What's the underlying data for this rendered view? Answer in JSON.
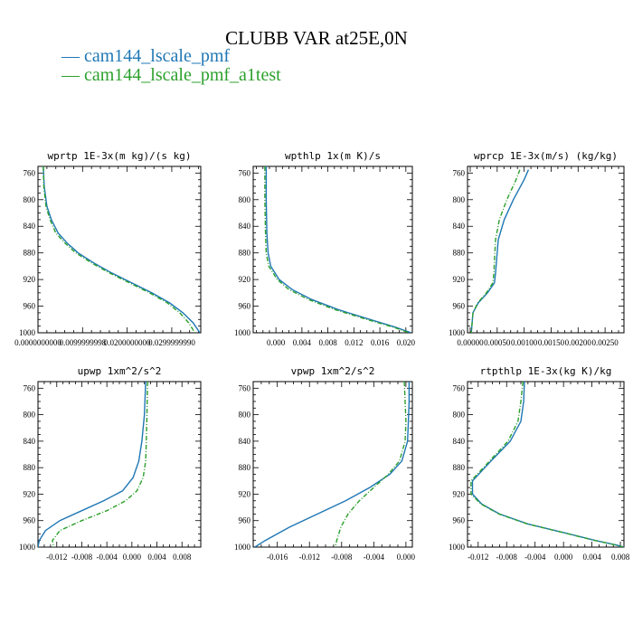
{
  "title": "CLUBB VAR at25E,0N",
  "legend": [
    {
      "label": "cam144_lscale_pmf",
      "color": "#1f77b4",
      "style": "solid"
    },
    {
      "label": "cam144_lscale_pmf_a1test",
      "color": "#2ca02c",
      "style": "dashed"
    }
  ],
  "chart_data": [
    {
      "type": "line",
      "title": "wprtp  1E-3x(m kg)/(s kg)",
      "ylim": [
        1000,
        750
      ],
      "yticks": [
        760,
        800,
        840,
        880,
        920,
        960,
        1000
      ],
      "ytick_labels": [
        "760",
        "800",
        "840",
        "880",
        "920",
        "960",
        "1000"
      ],
      "xlim": [
        0,
        0.0365
      ],
      "xticks": [
        0,
        0.01,
        0.02,
        0.03
      ],
      "xtick_labels": [
        "0.0000000000",
        "0.0099999998",
        "0.0200000000",
        "0.0299999990"
      ],
      "xminor": 5,
      "yminor": 4,
      "series": [
        {
          "name": "cam144_lscale_pmf",
          "x": [
            0.0012,
            0.0014,
            0.002,
            0.003,
            0.0045,
            0.0065,
            0.009,
            0.0125,
            0.0165,
            0.021,
            0.0255,
            0.0295,
            0.0325,
            0.0348,
            0.0363
          ],
          "y": [
            750,
            780,
            810,
            830,
            850,
            865,
            880,
            895,
            910,
            925,
            940,
            955,
            970,
            985,
            1000
          ]
        },
        {
          "name": "cam144_lscale_pmf_a1test",
          "x": [
            0.0012,
            0.0013,
            0.0018,
            0.0027,
            0.004,
            0.006,
            0.0085,
            0.012,
            0.016,
            0.0205,
            0.025,
            0.029,
            0.0318,
            0.0338,
            0.0352
          ],
          "y": [
            750,
            780,
            810,
            830,
            850,
            865,
            880,
            895,
            910,
            925,
            940,
            955,
            970,
            985,
            1000
          ]
        }
      ]
    },
    {
      "type": "line",
      "title": "wpthlp  1x(m K)/s",
      "ylim": [
        1000,
        750
      ],
      "yticks": [
        760,
        800,
        840,
        880,
        920,
        960,
        1000
      ],
      "ytick_labels": [
        "760",
        "800",
        "840",
        "880",
        "920",
        "960",
        "1000"
      ],
      "xlim": [
        -0.0035,
        0.021
      ],
      "xticks": [
        0,
        0.004,
        0.008,
        0.012,
        0.016,
        0.02
      ],
      "xtick_labels": [
        "0.000",
        "0.004",
        "0.008",
        "0.012",
        "0.016",
        "0.020"
      ],
      "xminor": 4,
      "yminor": 4,
      "series": [
        {
          "name": "cam144_lscale_pmf",
          "x": [
            -0.0015,
            -0.0015,
            -0.0014,
            -0.0012,
            -0.0008,
            0.0005,
            0.0025,
            0.0055,
            0.0095,
            0.0145,
            0.0185,
            0.0208
          ],
          "y": [
            750,
            800,
            850,
            880,
            900,
            920,
            935,
            950,
            965,
            980,
            992,
            1000
          ]
        },
        {
          "name": "cam144_lscale_pmf_a1test",
          "x": [
            -0.0017,
            -0.0017,
            -0.0016,
            -0.0015,
            -0.0011,
            0.0002,
            0.002,
            0.005,
            0.009,
            0.014,
            0.0182,
            0.0205
          ],
          "y": [
            750,
            800,
            850,
            880,
            900,
            920,
            935,
            950,
            965,
            980,
            992,
            1000
          ]
        }
      ]
    },
    {
      "type": "line",
      "title": "wprcp  1E-3x(m/s) (kg/kg)",
      "ylim": [
        1000,
        750
      ],
      "yticks": [
        760,
        800,
        840,
        880,
        920,
        960,
        1000
      ],
      "ytick_labels": [
        "760",
        "800",
        "840",
        "880",
        "920",
        "960",
        "1000"
      ],
      "xlim": [
        -5e-05,
        0.00285
      ],
      "xticks": [
        0,
        0.0005,
        0.001,
        0.0015,
        0.002,
        0.0025
      ],
      "xtick_labels": [
        "0.00000",
        "0.00050",
        "0.00100",
        "0.00150",
        "0.00200",
        "0.00250"
      ],
      "xminor": 4,
      "yminor": 4,
      "series": [
        {
          "name": "cam144_lscale_pmf",
          "x": [
            0.00108,
            0.001,
            0.0008,
            0.00063,
            0.00052,
            0.00049,
            0.00047,
            0.00045,
            0.00032,
            0.00015,
            5e-05,
            2e-05
          ],
          "y": [
            755,
            770,
            800,
            830,
            860,
            890,
            910,
            925,
            940,
            955,
            970,
            1000
          ]
        },
        {
          "name": "cam144_lscale_pmf_a1test",
          "x": [
            0.00092,
            0.00085,
            0.00068,
            0.00054,
            0.00047,
            0.00045,
            0.00044,
            0.00042,
            0.0003,
            0.00014,
            5e-05,
            2e-05
          ],
          "y": [
            755,
            770,
            800,
            830,
            860,
            890,
            910,
            925,
            940,
            955,
            970,
            1000
          ]
        }
      ]
    },
    {
      "type": "line",
      "title": "upwp  1xm^2/s^2",
      "ylim": [
        1000,
        750
      ],
      "yticks": [
        760,
        800,
        840,
        880,
        920,
        960,
        1000
      ],
      "ytick_labels": [
        "760",
        "800",
        "840",
        "880",
        "920",
        "960",
        "1000"
      ],
      "xlim": [
        -0.015,
        0.011
      ],
      "xticks": [
        -0.012,
        -0.008,
        -0.004,
        0,
        0.004,
        0.008
      ],
      "xtick_labels": [
        "-0.012",
        "-0.008",
        "-0.004",
        "0.000",
        "0.004",
        "0.008"
      ],
      "xminor": 4,
      "yminor": 4,
      "series": [
        {
          "name": "cam144_lscale_pmf",
          "x": [
            0.0022,
            0.002,
            0.0016,
            0.0011,
            0.0002,
            -0.0015,
            -0.0045,
            -0.008,
            -0.0115,
            -0.0138,
            -0.0148,
            -0.015
          ],
          "y": [
            750,
            800,
            840,
            870,
            895,
            915,
            930,
            945,
            960,
            975,
            990,
            1000
          ]
        },
        {
          "name": "cam144_lscale_pmf_a1test",
          "x": [
            0.0025,
            0.0024,
            0.0023,
            0.0022,
            0.0018,
            0.0008,
            -0.001,
            -0.004,
            -0.008,
            -0.0115,
            -0.0127,
            -0.0125
          ],
          "y": [
            750,
            800,
            840,
            870,
            895,
            915,
            930,
            945,
            960,
            975,
            990,
            1000
          ]
        }
      ]
    },
    {
      "type": "line",
      "title": "vpwp  1xm^2/s^2",
      "ylim": [
        1000,
        750
      ],
      "yticks": [
        760,
        800,
        840,
        880,
        920,
        960,
        1000
      ],
      "ytick_labels": [
        "760",
        "800",
        "840",
        "880",
        "920",
        "960",
        "1000"
      ],
      "xlim": [
        -0.019,
        0.0008
      ],
      "xticks": [
        -0.016,
        -0.012,
        -0.008,
        -0.004,
        0
      ],
      "xtick_labels": [
        "-0.016",
        "-0.012",
        "-0.008",
        "-0.004",
        "0.000"
      ],
      "xminor": 4,
      "yminor": 4,
      "series": [
        {
          "name": "cam144_lscale_pmf",
          "x": [
            0.0004,
            0.0004,
            0.0003,
            0.0002,
            -0.0005,
            -0.002,
            -0.0045,
            -0.0075,
            -0.011,
            -0.0145,
            -0.0175,
            -0.0188
          ],
          "y": [
            750,
            780,
            810,
            840,
            870,
            890,
            910,
            930,
            950,
            970,
            990,
            1000
          ]
        },
        {
          "name": "cam144_lscale_pmf_a1test",
          "x": [
            -0.0002,
            -0.0001,
            0.0,
            -0.0001,
            -0.0008,
            -0.0022,
            -0.004,
            -0.0058,
            -0.0072,
            -0.0081,
            -0.0086,
            -0.0088
          ],
          "y": [
            750,
            780,
            810,
            840,
            870,
            890,
            910,
            930,
            950,
            970,
            990,
            1000
          ]
        }
      ]
    },
    {
      "type": "line",
      "title": "rtpthlp  1E-3x(kg K)/kg",
      "ylim": [
        1000,
        750
      ],
      "yticks": [
        760,
        800,
        840,
        880,
        920,
        960,
        1000
      ],
      "ytick_labels": [
        "760",
        "800",
        "840",
        "880",
        "920",
        "960",
        "1000"
      ],
      "xlim": [
        -0.0135,
        0.0085
      ],
      "xticks": [
        -0.012,
        -0.008,
        -0.004,
        0,
        0.004,
        0.008
      ],
      "xtick_labels": [
        "-0.012",
        "-0.008",
        "-0.004",
        "0.000",
        "0.004",
        "0.008"
      ],
      "xminor": 4,
      "yminor": 4,
      "series": [
        {
          "name": "cam144_lscale_pmf",
          "x": [
            -0.0055,
            -0.0056,
            -0.006,
            -0.0075,
            -0.0102,
            -0.0128,
            -0.0128,
            -0.0115,
            -0.009,
            -0.005,
            0.0,
            0.0045,
            0.0075,
            0.0085
          ],
          "y": [
            750,
            780,
            810,
            840,
            870,
            900,
            920,
            935,
            950,
            965,
            978,
            990,
            997,
            1000
          ]
        },
        {
          "name": "cam144_lscale_pmf_a1test",
          "x": [
            -0.0057,
            -0.006,
            -0.0064,
            -0.0078,
            -0.0104,
            -0.013,
            -0.013,
            -0.0116,
            -0.0091,
            -0.0051,
            -0.0001,
            0.0044,
            0.0074,
            0.0084
          ],
          "y": [
            750,
            780,
            810,
            840,
            870,
            900,
            920,
            935,
            950,
            965,
            978,
            990,
            997,
            1000
          ]
        }
      ]
    }
  ]
}
